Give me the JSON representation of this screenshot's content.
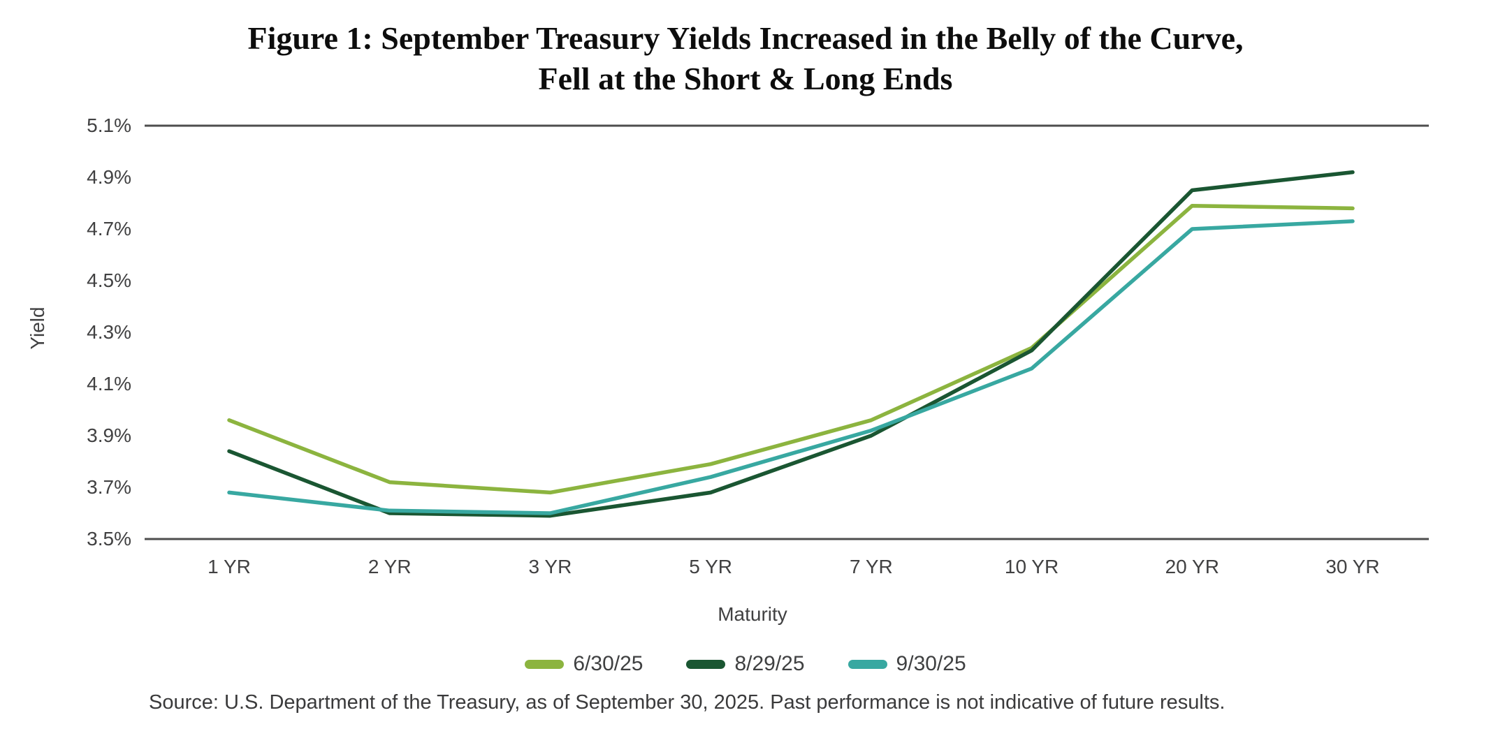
{
  "title": {
    "line1": "Figure 1: September Treasury Yields Increased in the Belly of the Curve,",
    "line2": "Fell at the Short & Long Ends"
  },
  "chart_data": {
    "type": "line",
    "title": "Figure 1: September Treasury Yields Increased in the Belly of the Curve, Fell at the Short & Long Ends",
    "xlabel": "Maturity",
    "ylabel": "Yield",
    "categories": [
      "1 YR",
      "2 YR",
      "3 YR",
      "5 YR",
      "7 YR",
      "10 YR",
      "20 YR",
      "30 YR"
    ],
    "series": [
      {
        "name": "6/30/25",
        "color": "#8CB43F",
        "values": [
          3.96,
          3.72,
          3.68,
          3.79,
          3.96,
          4.24,
          4.79,
          4.78
        ]
      },
      {
        "name": "8/29/25",
        "color": "#1A5632",
        "values": [
          3.84,
          3.6,
          3.59,
          3.68,
          3.9,
          4.23,
          4.85,
          4.92
        ]
      },
      {
        "name": "9/30/25",
        "color": "#38A8A1",
        "values": [
          3.68,
          3.61,
          3.6,
          3.74,
          3.92,
          4.16,
          4.7,
          4.73
        ]
      }
    ],
    "ylim": [
      3.5,
      5.1
    ],
    "ytick_labels": [
      "5.1%",
      "4.9%",
      "4.7%",
      "4.5%",
      "4.3%",
      "4.1%",
      "3.9%",
      "3.7%",
      "3.5%"
    ],
    "grid": "horizontal rules at top (5.1%) and bottom (3.5%) only",
    "legend_position": "bottom"
  },
  "source_note": "Source: U.S. Department of the Treasury, as of September 30, 2025. Past performance is not indicative of future results.",
  "colors": {
    "axis_line": "#4D4D4D",
    "tick_text": "#414142",
    "title_text": "#0D0D0D"
  }
}
